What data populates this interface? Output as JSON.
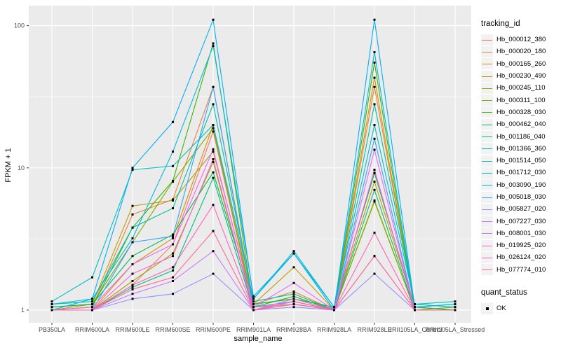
{
  "chart_data": {
    "type": "line",
    "title": "",
    "xlabel": "sample_name",
    "ylabel": "FPKM + 1",
    "yscale": "log10",
    "yticks": [
      1,
      10,
      100
    ],
    "ylim": [
      0.82,
      140
    ],
    "grid": true,
    "legend_position": "right",
    "legend_title": "tracking_id",
    "panel_bg": "#EBEBEB",
    "grid_color": "#FFFFFF",
    "tick_color": "#333333",
    "tick_label_color": "#4d4d4d",
    "point_color": "#000000",
    "point_shape": "square",
    "categories": [
      "PB350LA",
      "RRIM600LA",
      "RRIM600LE",
      "RRIM600SE",
      "RRIM600PE",
      "RRIM901LA",
      "RRIM928BA",
      "RRIM928LA",
      "RRIM928LE",
      "RRII105LA_Control",
      "RRII105LA_Stressed"
    ],
    "series": [
      {
        "name": "Hb_000012_380",
        "color": "#F8766D",
        "values": [
          1.0,
          1.0,
          1.5,
          2.9,
          18,
          1.05,
          1.1,
          1.0,
          9.7,
          1.0,
          1.0
        ]
      },
      {
        "name": "Hb_000020_180",
        "color": "#EA8331",
        "values": [
          1.0,
          1.05,
          4.7,
          6.0,
          37,
          1.1,
          1.35,
          1.0,
          37,
          1.05,
          1.0
        ]
      },
      {
        "name": "Hb_000165_260",
        "color": "#D89000",
        "values": [
          1.0,
          1.0,
          2.1,
          3.2,
          20,
          1.0,
          1.1,
          1.0,
          43,
          1.0,
          1.0
        ]
      },
      {
        "name": "Hb_000230_490",
        "color": "#C09B00",
        "values": [
          1.0,
          1.1,
          5.4,
          5.9,
          13,
          1.1,
          2.0,
          1.0,
          8.0,
          1.05,
          1.0
        ]
      },
      {
        "name": "Hb_000245_110",
        "color": "#A3A500",
        "values": [
          1.0,
          1.0,
          1.6,
          2.5,
          11,
          1.0,
          1.15,
          1.0,
          5.8,
          1.0,
          1.0
        ]
      },
      {
        "name": "Hb_000311_100",
        "color": "#7CAE00",
        "values": [
          1.05,
          1.1,
          3.0,
          8.0,
          19,
          1.1,
          1.2,
          1.0,
          5.9,
          1.0,
          1.05
        ]
      },
      {
        "name": "Hb_000328_030",
        "color": "#39B600",
        "values": [
          1.0,
          1.05,
          3.8,
          8.1,
          75,
          1.05,
          1.25,
          1.0,
          55,
          1.0,
          1.0
        ]
      },
      {
        "name": "Hb_000462_040",
        "color": "#00BB4E",
        "values": [
          1.05,
          1.1,
          2.4,
          3.4,
          9.3,
          1.1,
          1.2,
          1.05,
          9.2,
          1.05,
          1.0
        ]
      },
      {
        "name": "Hb_001186_040",
        "color": "#00BF7D",
        "values": [
          1.0,
          1.0,
          1.45,
          1.9,
          8.5,
          1.0,
          1.1,
          1.0,
          7.0,
          1.0,
          1.0
        ]
      },
      {
        "name": "Hb_001366_360",
        "color": "#00C1A3",
        "values": [
          1.1,
          1.15,
          3.8,
          5.2,
          28,
          1.15,
          1.3,
          1.0,
          28,
          1.1,
          1.05
        ]
      },
      {
        "name": "Hb_001514_050",
        "color": "#00BFC4",
        "values": [
          1.15,
          1.7,
          9.7,
          10.3,
          20,
          1.2,
          2.6,
          1.05,
          20,
          1.1,
          1.15
        ]
      },
      {
        "name": "Hb_001712_030",
        "color": "#00BAE0",
        "values": [
          1.1,
          1.2,
          3.2,
          13,
          72,
          1.25,
          2.5,
          1.05,
          65,
          1.05,
          1.1
        ]
      },
      {
        "name": "Hb_003090_190",
        "color": "#00B0F6",
        "values": [
          1.0,
          1.2,
          10,
          21,
          110,
          1.2,
          2.5,
          1.0,
          110,
          1.05,
          1.1
        ]
      },
      {
        "name": "Hb_005018_030",
        "color": "#35A2FF",
        "values": [
          1.0,
          1.0,
          3.0,
          3.3,
          37,
          1.05,
          1.15,
          1.0,
          16,
          1.0,
          1.0
        ]
      },
      {
        "name": "Hb_005827_020",
        "color": "#9590FF",
        "values": [
          1.0,
          1.0,
          1.2,
          1.3,
          1.8,
          1.0,
          1.05,
          1.0,
          1.8,
          1.0,
          1.0
        ]
      },
      {
        "name": "Hb_007227_030",
        "color": "#C77CFF",
        "values": [
          1.0,
          1.0,
          1.3,
          1.6,
          2.6,
          1.0,
          1.1,
          1.0,
          2.4,
          1.0,
          1.0
        ]
      },
      {
        "name": "Hb_008001_030",
        "color": "#E76BF3",
        "values": [
          1.0,
          1.05,
          2.1,
          2.9,
          13.5,
          1.05,
          1.55,
          1.0,
          13.4,
          1.0,
          1.0
        ]
      },
      {
        "name": "Hb_019925_020",
        "color": "#FA62DB",
        "values": [
          1.0,
          1.0,
          1.8,
          2.4,
          11.5,
          1.0,
          1.2,
          1.0,
          9.7,
          1.0,
          1.0
        ]
      },
      {
        "name": "Hb_026124_020",
        "color": "#FF62BC",
        "values": [
          1.0,
          1.0,
          1.5,
          2.0,
          5.5,
          1.0,
          1.15,
          1.0,
          3.5,
          1.0,
          1.0
        ]
      },
      {
        "name": "Hb_077774_010",
        "color": "#FF6A98",
        "values": [
          1.0,
          1.0,
          1.4,
          1.7,
          3.6,
          1.0,
          1.1,
          1.0,
          2.4,
          1.0,
          1.0
        ]
      }
    ],
    "quant_legend": {
      "title": "quant_status",
      "items": [
        {
          "label": "OK"
        }
      ]
    }
  }
}
